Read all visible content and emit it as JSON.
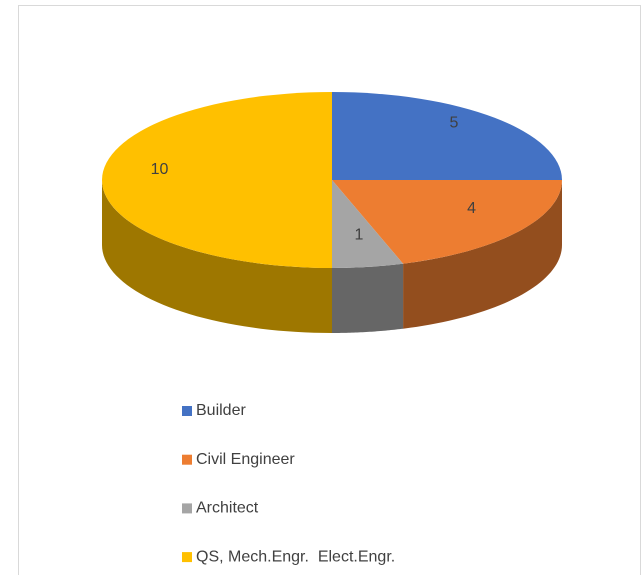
{
  "chart_data": {
    "type": "pie3d",
    "categories": [
      "Builder",
      "Civil Engineer",
      "Architect",
      "QS, Mech.Engr.  Elect.Engr."
    ],
    "values": [
      5,
      4,
      1,
      10
    ],
    "colors": [
      "#4472c4",
      "#ed7d31",
      "#a5a5a5",
      "#ffc000"
    ],
    "legend": "bottom"
  }
}
